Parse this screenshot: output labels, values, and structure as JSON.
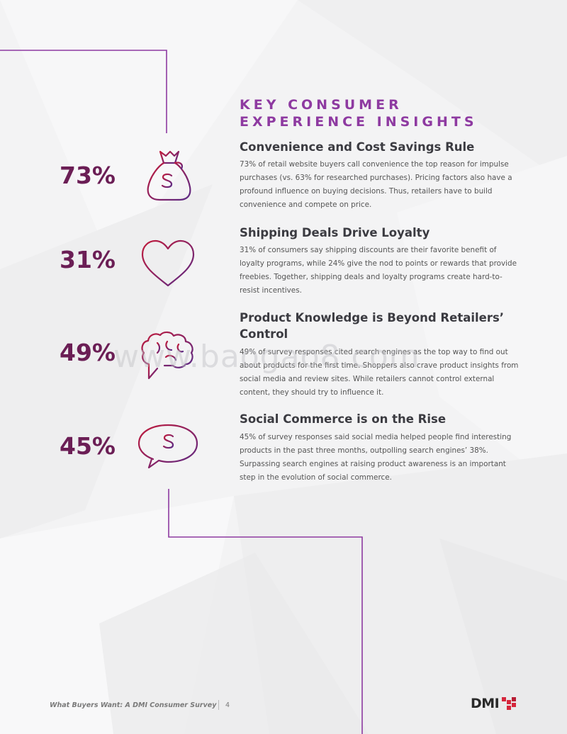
{
  "section_title": "KEY CONSUMER EXPERIENCE INSIGHTS",
  "insights": [
    {
      "percent": "73%",
      "icon": "money-bag-icon",
      "heading": "Convenience and Cost Savings Rule",
      "body": "73% of retail website buyers call convenience the top reason for impulse purchases (vs. 63% for researched purchases). Pricing factors also have a profound influence on buying decisions. Thus, retailers have to build convenience and compete on price."
    },
    {
      "percent": "31%",
      "icon": "heart-icon",
      "heading": "Shipping Deals Drive Loyalty",
      "body": "31% of consumers say shipping discounts are their favorite benefit of loyalty programs, while 24% give the nod to points or rewards that provide freebies. Together, shipping deals and loyalty programs create hard-to-resist incentives."
    },
    {
      "percent": "49%",
      "icon": "brain-chat-icon",
      "heading": "Product Knowledge is Beyond Retailers’ Control",
      "body": "49% of survey responses cited search engines as the top way to find out about products for the first time. Shoppers also crave product insights from social media and review sites. While retailers cannot control external content, they should try to influence it."
    },
    {
      "percent": "45%",
      "icon": "dollar-chat-icon",
      "heading": "Social Commerce is on the Rise",
      "body": "45% of survey responses said social media helped people find interesting products in the past three months, outpolling search engines’ 38%. Surpassing search engines at raising product awareness is an important step in the evolution of social commerce."
    }
  ],
  "watermark": "www.baogao8.com",
  "footer": {
    "title": "What Buyers Want: A DMI Consumer Survey",
    "page": "4",
    "logo": "DMI"
  },
  "colors": {
    "accent_purple": "#8e3aa1",
    "percent_color": "#6b1e55",
    "icon_gradient_start": "#c01b3c",
    "icon_gradient_end": "#5b2a86"
  }
}
